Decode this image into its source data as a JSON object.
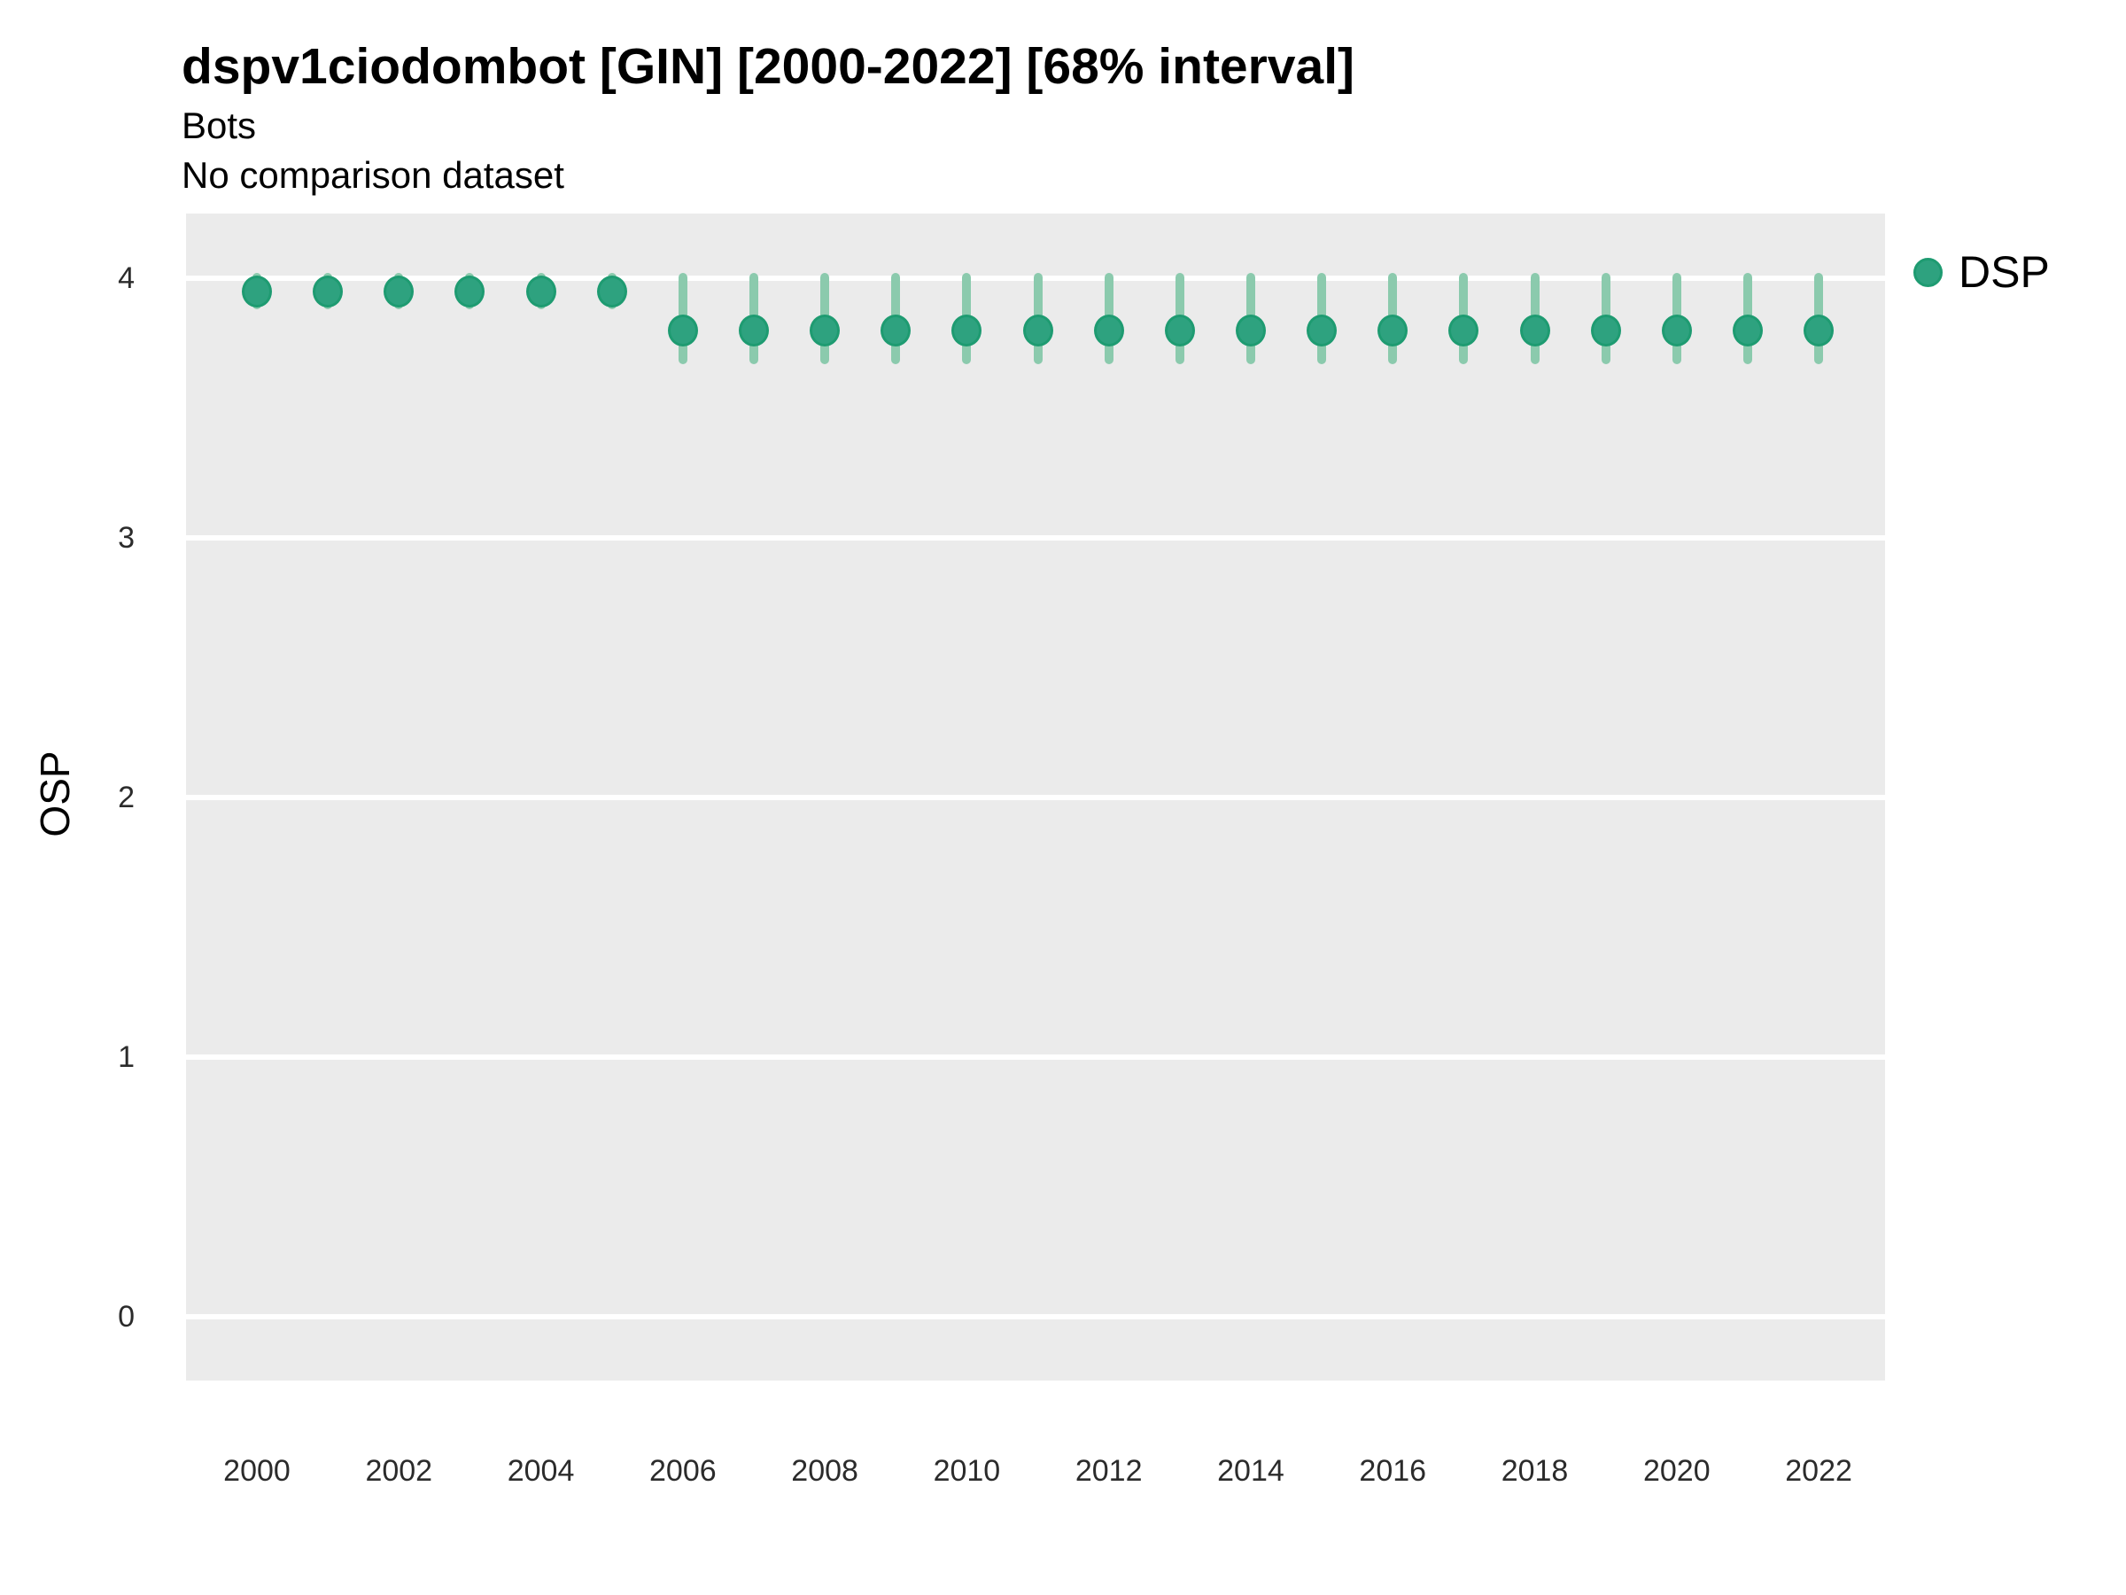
{
  "title": "dspv1ciodombot [GIN] [2000-2022] [68% interval]",
  "subtitle": "Bots",
  "comparison_note": "No comparison dataset",
  "legend": {
    "label": "DSP",
    "position": "right"
  },
  "colors": {
    "point_fill": "#2EA27F",
    "point_stroke": "#1E9B71",
    "interval_bar": "#8BCAAD",
    "panel_background": "#EBEBEB",
    "gridline": "#FFFFFF",
    "title_text": "#000000",
    "tick_text": "#2b2b2b"
  },
  "chart_data": {
    "type": "scatter",
    "subtype": "pointrange",
    "title": "dspv1ciodombot [GIN] [2000-2022] [68% interval]",
    "subtitle": "Bots",
    "comparison_note": "No comparison dataset",
    "interval_level": "68%",
    "xlabel": "",
    "ylabel": "OSP",
    "x_tick_labels": [
      2000,
      2002,
      2004,
      2006,
      2008,
      2010,
      2012,
      2014,
      2016,
      2018,
      2020,
      2022
    ],
    "y_tick_labels": [
      0,
      1,
      2,
      3,
      4
    ],
    "xlim": [
      1999.0,
      2022.6
    ],
    "ylim": [
      -0.25,
      4.25
    ],
    "grid": "major-horizontal-white-on-gray",
    "legend_position": "right",
    "series": [
      {
        "name": "DSP",
        "points": [
          {
            "year": 2000,
            "value": 3.95,
            "lo": 3.88,
            "hi": 4.02
          },
          {
            "year": 2001,
            "value": 3.95,
            "lo": 3.88,
            "hi": 4.02
          },
          {
            "year": 2002,
            "value": 3.95,
            "lo": 3.88,
            "hi": 4.02
          },
          {
            "year": 2003,
            "value": 3.95,
            "lo": 3.88,
            "hi": 4.02
          },
          {
            "year": 2004,
            "value": 3.95,
            "lo": 3.88,
            "hi": 4.02
          },
          {
            "year": 2005,
            "value": 3.95,
            "lo": 3.88,
            "hi": 4.02
          },
          {
            "year": 2006,
            "value": 3.8,
            "lo": 3.67,
            "hi": 4.02
          },
          {
            "year": 2007,
            "value": 3.8,
            "lo": 3.67,
            "hi": 4.02
          },
          {
            "year": 2008,
            "value": 3.8,
            "lo": 3.67,
            "hi": 4.02
          },
          {
            "year": 2009,
            "value": 3.8,
            "lo": 3.67,
            "hi": 4.02
          },
          {
            "year": 2010,
            "value": 3.8,
            "lo": 3.67,
            "hi": 4.02
          },
          {
            "year": 2011,
            "value": 3.8,
            "lo": 3.67,
            "hi": 4.02
          },
          {
            "year": 2012,
            "value": 3.8,
            "lo": 3.67,
            "hi": 4.02
          },
          {
            "year": 2013,
            "value": 3.8,
            "lo": 3.67,
            "hi": 4.02
          },
          {
            "year": 2014,
            "value": 3.8,
            "lo": 3.67,
            "hi": 4.02
          },
          {
            "year": 2015,
            "value": 3.8,
            "lo": 3.67,
            "hi": 4.02
          },
          {
            "year": 2016,
            "value": 3.8,
            "lo": 3.67,
            "hi": 4.02
          },
          {
            "year": 2017,
            "value": 3.8,
            "lo": 3.67,
            "hi": 4.02
          },
          {
            "year": 2018,
            "value": 3.8,
            "lo": 3.67,
            "hi": 4.02
          },
          {
            "year": 2019,
            "value": 3.8,
            "lo": 3.67,
            "hi": 4.02
          },
          {
            "year": 2020,
            "value": 3.8,
            "lo": 3.67,
            "hi": 4.02
          },
          {
            "year": 2021,
            "value": 3.8,
            "lo": 3.67,
            "hi": 4.02
          },
          {
            "year": 2022,
            "value": 3.8,
            "lo": 3.67,
            "hi": 4.02
          }
        ]
      }
    ]
  }
}
